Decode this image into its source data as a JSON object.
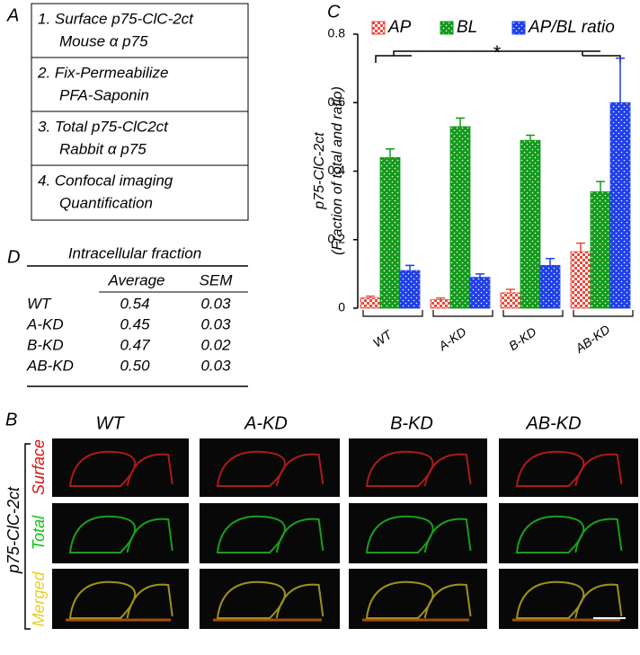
{
  "panel_a": {
    "letter": "A",
    "steps": [
      [
        "1. Surface p75-ClC-2ct",
        "Mouse α p75"
      ],
      [
        "2. Fix-Permeabilize",
        "PFA-Saponin"
      ],
      [
        "3. Total  p75-ClC2ct",
        "Rabbit α p75"
      ],
      [
        "4. Confocal imaging",
        "Quantification"
      ]
    ]
  },
  "panel_d": {
    "letter": "D",
    "title": "Intracellular fraction",
    "header": [
      "Average",
      "SEM"
    ],
    "rows": [
      [
        "WT",
        "0.54",
        "0.03"
      ],
      [
        "A-KD",
        "0.45",
        "0.03"
      ],
      [
        "B-KD",
        "0.47",
        "0.02"
      ],
      [
        "AB-KD",
        "0.50",
        "0.03"
      ]
    ]
  },
  "panel_b": {
    "letter": "B",
    "columns": [
      "WT",
      "A-KD",
      "B-KD",
      "AB-KD"
    ],
    "rows": [
      "Surface",
      "Total",
      "Merged"
    ],
    "protein": "p75-ClC-2ct"
  },
  "chart_data": {
    "type": "bar",
    "panel": "C",
    "categories": [
      "WT",
      "A-KD",
      "B-KD",
      "AB-KD"
    ],
    "series": [
      {
        "name": "AP",
        "color": "#e84a3c",
        "values": [
          0.03,
          0.025,
          0.045,
          0.165
        ],
        "errors": [
          0.005,
          0.005,
          0.01,
          0.025
        ]
      },
      {
        "name": "BL",
        "color": "#139a1c",
        "values": [
          0.44,
          0.53,
          0.49,
          0.34
        ],
        "errors": [
          0.025,
          0.025,
          0.015,
          0.03
        ]
      },
      {
        "name": "AP/BL ratio",
        "color": "#1f3fea",
        "values": [
          0.11,
          0.09,
          0.125,
          0.6
        ],
        "errors": [
          0.015,
          0.01,
          0.02,
          0.13
        ]
      }
    ],
    "ylabel": [
      "p75-ClC-2ct",
      "(Fraction of total and ratio)"
    ],
    "ylim": [
      0,
      0.8
    ],
    "yticks": [
      0,
      0.2,
      0.4,
      0.6,
      0.8
    ],
    "annotation": "*"
  }
}
